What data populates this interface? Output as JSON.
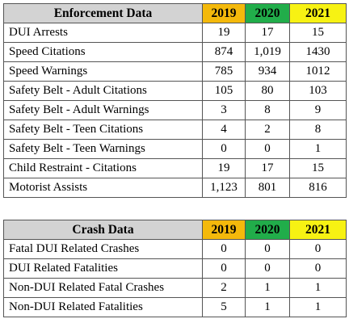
{
  "tables": [
    {
      "header": [
        "Enforcement Data",
        "2019",
        "2020",
        "2021"
      ],
      "rows": [
        [
          "DUI Arrests",
          "19",
          "17",
          "15"
        ],
        [
          "Speed Citations",
          "874",
          "1,019",
          "1430"
        ],
        [
          "Speed Warnings",
          "785",
          "934",
          "1012"
        ],
        [
          "Safety Belt - Adult Citations",
          "105",
          "80",
          "103"
        ],
        [
          "Safety Belt - Adult Warnings",
          "3",
          "8",
          "9"
        ],
        [
          "Safety Belt - Teen Citations",
          "4",
          "2",
          "8"
        ],
        [
          "Safety Belt - Teen Warnings",
          "0",
          "0",
          "1"
        ],
        [
          "Child Restraint - Citations",
          "19",
          "17",
          "15"
        ],
        [
          "Motorist Assists",
          "1,123",
          "801",
          "816"
        ]
      ]
    },
    {
      "header": [
        "Crash Data",
        "2019",
        "2020",
        "2021"
      ],
      "rows": [
        [
          "Fatal DUI Related Crashes",
          "0",
          "0",
          "0"
        ],
        [
          "DUI Related Fatalities",
          "0",
          "0",
          "0"
        ],
        [
          "Non-DUI Related Fatal Crashes",
          "2",
          "1",
          "1"
        ],
        [
          "Non-DUI Related Fatalities",
          "5",
          "1",
          "1"
        ]
      ]
    }
  ]
}
